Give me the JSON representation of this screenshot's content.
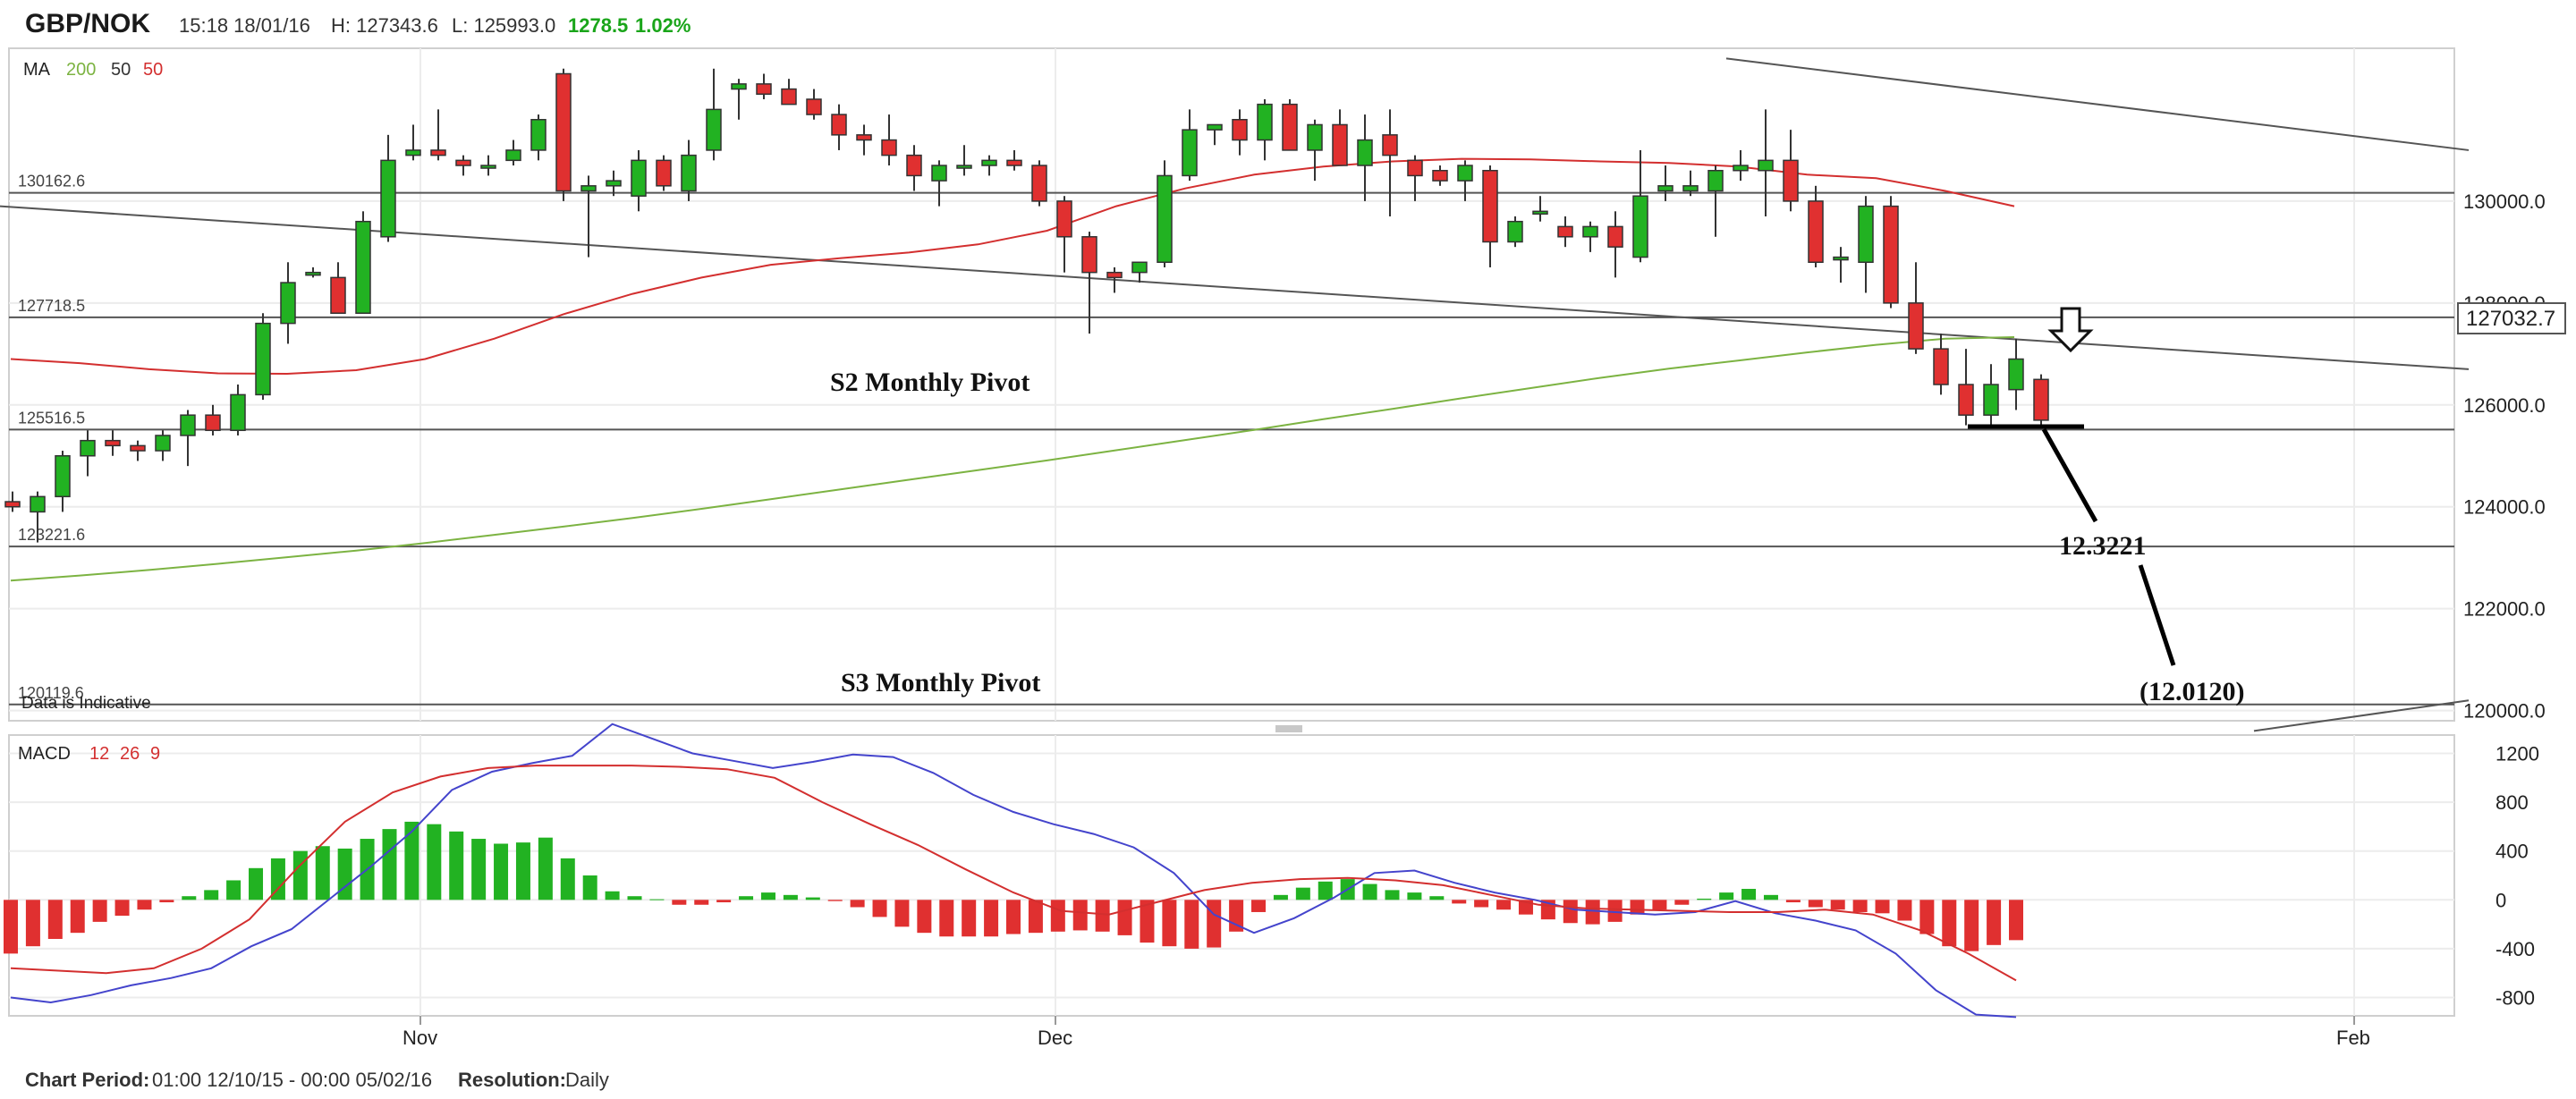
{
  "header": {
    "symbol": "GBP/NOK",
    "datetime": "15:18 18/01/16",
    "high": "H: 127343.6",
    "low": "L: 125993.0",
    "change": "1278.5",
    "change_pct": "1.02%"
  },
  "ma_legend": {
    "label": "MA",
    "p200": "200",
    "p50": "50",
    "p50b": "50"
  },
  "macd_legend": {
    "label": "MACD",
    "p1": "12",
    "p2": "26",
    "p3": "9"
  },
  "disclaimer": "Data is Indicative",
  "last_price": "127032.7",
  "footer": {
    "period_label": "Chart Period:",
    "period_value": "01:00 12/10/15 - 00:00 05/02/16",
    "resolution_label": "Resolution:",
    "resolution_value": "Daily"
  },
  "colors": {
    "bull": "#22b222",
    "bear": "#e03030",
    "ma200": "#7cb342",
    "ma50": "#d32f2f",
    "macd_line": "#4444cc",
    "signal_line": "#d32f2f"
  },
  "chart_data": [
    {
      "type": "candlestick",
      "title": "GBP/NOK",
      "ylim": [
        119800,
        133000
      ],
      "y_ticks": [
        "130000.0",
        "128000.0",
        "126000.0",
        "124000.0",
        "122000.0",
        "120000.0"
      ],
      "x_ticks": [
        "Nov",
        "Dec",
        "Feb"
      ],
      "horizontal_levels": [
        {
          "value": 130162.6,
          "label": "130162.6"
        },
        {
          "value": 127718.5,
          "label": "127718.5"
        },
        {
          "value": 125516.5,
          "label": "125516.5"
        },
        {
          "value": 123221.6,
          "label": "123221.6"
        },
        {
          "value": 120119.6,
          "label": "120119.6"
        }
      ],
      "annotations": [
        "S2 Monthly Pivot",
        "S3 Monthly Pivot",
        "12.3221",
        "(12.0120)"
      ],
      "candles": [
        [
          124100,
          124300,
          123900,
          124000
        ],
        [
          123900,
          124300,
          123300,
          124200
        ],
        [
          124200,
          125100,
          123900,
          125000
        ],
        [
          125000,
          125500,
          124600,
          125300
        ],
        [
          125300,
          125500,
          125000,
          125200
        ],
        [
          125200,
          125300,
          124900,
          125100
        ],
        [
          125100,
          125500,
          124900,
          125400
        ],
        [
          125400,
          125900,
          124800,
          125800
        ],
        [
          125800,
          126000,
          125400,
          125500
        ],
        [
          125500,
          126400,
          125400,
          126200
        ],
        [
          126200,
          127800,
          126100,
          127600
        ],
        [
          127600,
          128800,
          127200,
          128400
        ],
        [
          128600,
          128700,
          128500,
          128600
        ],
        [
          128500,
          128800,
          127800,
          127800
        ],
        [
          127800,
          129800,
          127800,
          129600
        ],
        [
          129300,
          131300,
          129200,
          130800
        ],
        [
          130900,
          131500,
          130800,
          131000
        ],
        [
          131000,
          131800,
          130800,
          130900
        ],
        [
          130800,
          130900,
          130500,
          130700
        ],
        [
          130700,
          130900,
          130500,
          130700
        ],
        [
          130800,
          131200,
          130700,
          131000
        ],
        [
          131000,
          131700,
          130800,
          131600
        ],
        [
          132500,
          132600,
          130000,
          130200
        ],
        [
          130200,
          130500,
          128900,
          130300
        ],
        [
          130300,
          130600,
          130100,
          130400
        ],
        [
          130100,
          131000,
          129800,
          130800
        ],
        [
          130800,
          130900,
          130200,
          130300
        ],
        [
          130200,
          131200,
          130000,
          130900
        ],
        [
          131000,
          132600,
          130800,
          131800
        ],
        [
          132200,
          132400,
          131600,
          132300
        ],
        [
          132300,
          132500,
          132000,
          132100
        ],
        [
          132200,
          132400,
          131900,
          131900
        ],
        [
          132000,
          132200,
          131600,
          131700
        ],
        [
          131700,
          131900,
          131000,
          131300
        ],
        [
          131300,
          131500,
          130900,
          131200
        ],
        [
          131200,
          131700,
          130700,
          130900
        ],
        [
          130900,
          131100,
          130200,
          130500
        ],
        [
          130400,
          130800,
          129900,
          130700
        ],
        [
          130700,
          131100,
          130500,
          130700
        ],
        [
          130700,
          130900,
          130500,
          130800
        ],
        [
          130800,
          131000,
          130600,
          130700
        ],
        [
          130700,
          130800,
          129900,
          130000
        ],
        [
          130000,
          130100,
          128600,
          129300
        ],
        [
          129300,
          129400,
          127400,
          128600
        ],
        [
          128600,
          128700,
          128200,
          128500
        ],
        [
          128600,
          128800,
          128400,
          128800
        ],
        [
          128800,
          130800,
          128700,
          130500
        ],
        [
          130500,
          131800,
          130400,
          131400
        ],
        [
          131400,
          131500,
          131100,
          131500
        ],
        [
          131600,
          131800,
          130900,
          131200
        ],
        [
          131200,
          132000,
          130800,
          131900
        ],
        [
          131900,
          132000,
          131000,
          131000
        ],
        [
          131000,
          131600,
          130400,
          131500
        ],
        [
          131500,
          131800,
          130700,
          130700
        ],
        [
          130700,
          131700,
          130000,
          131200
        ],
        [
          131300,
          131800,
          129700,
          130900
        ],
        [
          130800,
          130900,
          130000,
          130500
        ],
        [
          130600,
          130700,
          130300,
          130400
        ],
        [
          130400,
          130800,
          130000,
          130700
        ],
        [
          130600,
          130700,
          128700,
          129200
        ],
        [
          129200,
          129700,
          129100,
          129600
        ],
        [
          129800,
          130100,
          129600,
          129800
        ],
        [
          129500,
          129700,
          129100,
          129300
        ],
        [
          129300,
          129600,
          129000,
          129500
        ],
        [
          129500,
          129800,
          128500,
          129100
        ],
        [
          128900,
          131000,
          128800,
          130100
        ],
        [
          130200,
          130700,
          130000,
          130300
        ],
        [
          130200,
          130600,
          130100,
          130300
        ],
        [
          130200,
          130700,
          129300,
          130600
        ],
        [
          130600,
          131000,
          130400,
          130700
        ],
        [
          130600,
          131800,
          129700,
          130800
        ],
        [
          130800,
          131400,
          129800,
          130000
        ],
        [
          130000,
          130300,
          128700,
          128800
        ],
        [
          128900,
          129100,
          128400,
          128900
        ],
        [
          128800,
          130100,
          128200,
          129900
        ],
        [
          129900,
          130100,
          127900,
          128000
        ],
        [
          128000,
          128800,
          127000,
          127100
        ],
        [
          127100,
          127400,
          126200,
          126400
        ],
        [
          126400,
          127100,
          125600,
          125800
        ],
        [
          125800,
          126800,
          125600,
          126400
        ],
        [
          126300,
          127300,
          125900,
          126900
        ],
        [
          126500,
          126600,
          125600,
          125700
        ]
      ],
      "ma200": [
        122550,
        122650,
        122760,
        122880,
        123010,
        123140,
        123290,
        123450,
        123610,
        123780,
        123960,
        124150,
        124340,
        124530,
        124720,
        124910,
        125110,
        125310,
        125510,
        125720,
        125920,
        126130,
        126330,
        126530,
        126710,
        126870,
        127030,
        127180,
        127300,
        127330
      ],
      "ma50": [
        126900,
        126820,
        126700,
        126620,
        126610,
        126680,
        126900,
        127300,
        127780,
        128180,
        128500,
        128750,
        128880,
        128990,
        129150,
        129420,
        129900,
        130250,
        130520,
        130680,
        130780,
        130830,
        130820,
        130780,
        130750,
        130680,
        130520,
        130450,
        130200,
        129900
      ],
      "trendlines": [
        {
          "from": [
            0,
            129900
          ],
          "to": [
            2760,
            126700
          ]
        },
        {
          "from": [
            1930,
            132800
          ],
          "to": [
            2760,
            131000
          ]
        },
        {
          "from": [
            2520,
            119600
          ],
          "to": [
            2760,
            120200
          ]
        }
      ]
    },
    {
      "type": "bar",
      "title": "MACD 12 26 9",
      "ylim": [
        -950,
        1350
      ],
      "y_ticks": [
        "1200",
        "800",
        "400",
        "0",
        "-400",
        "-800"
      ],
      "histogram": [
        -440,
        -380,
        -320,
        -270,
        -180,
        -130,
        -80,
        -20,
        30,
        80,
        160,
        260,
        340,
        400,
        440,
        420,
        500,
        580,
        640,
        620,
        560,
        500,
        460,
        470,
        510,
        340,
        200,
        70,
        30,
        5,
        -40,
        -40,
        -20,
        30,
        60,
        40,
        20,
        -10,
        -60,
        -140,
        -220,
        -270,
        -300,
        -300,
        -300,
        -280,
        -270,
        -260,
        -250,
        -260,
        -290,
        -350,
        -380,
        -400,
        -390,
        -260,
        -100,
        40,
        100,
        150,
        170,
        130,
        80,
        60,
        30,
        -30,
        -60,
        -80,
        -120,
        -160,
        -190,
        -200,
        -180,
        -120,
        -80,
        -40,
        10,
        60,
        90,
        40,
        -20,
        -60,
        -80,
        -100,
        -110,
        -170,
        -280,
        -380,
        -420,
        -370,
        -330
      ],
      "macd": [
        -800,
        -840,
        -780,
        -700,
        -640,
        -560,
        -380,
        -240,
        20,
        280,
        560,
        900,
        1050,
        1120,
        1180,
        1440,
        1320,
        1200,
        1140,
        1080,
        1130,
        1190,
        1170,
        1040,
        860,
        720,
        620,
        540,
        430,
        220,
        -120,
        -270,
        -150,
        20,
        220,
        240,
        140,
        60,
        0,
        -80,
        -100,
        -120,
        -100,
        -10,
        -110,
        -170,
        -250,
        -440,
        -740,
        -940,
        -960
      ],
      "signal": [
        -560,
        -580,
        -600,
        -560,
        -400,
        -160,
        260,
        640,
        880,
        1010,
        1080,
        1100,
        1100,
        1100,
        1090,
        1070,
        1000,
        800,
        620,
        450,
        250,
        60,
        -90,
        -120,
        -20,
        80,
        140,
        170,
        180,
        160,
        120,
        40,
        -40,
        -70,
        -80,
        -90,
        -100,
        -100,
        -80,
        -120,
        -250,
        -440,
        -660
      ]
    }
  ]
}
